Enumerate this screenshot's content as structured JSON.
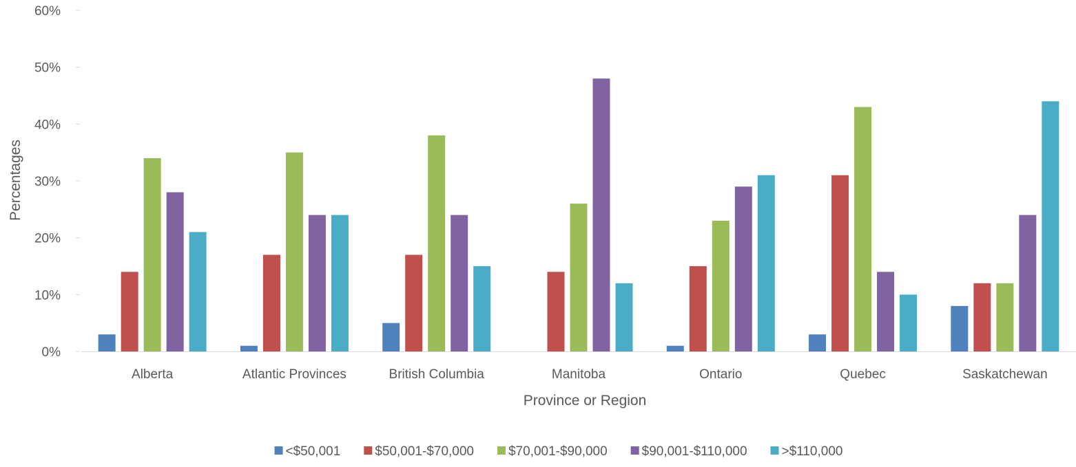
{
  "chart_data": {
    "type": "bar",
    "title": "",
    "xlabel": "Province or Region",
    "ylabel": "Percentages",
    "ylim": [
      0,
      60
    ],
    "yticks": [
      "0%",
      "10%",
      "20%",
      "30%",
      "40%",
      "50%",
      "60%"
    ],
    "categories": [
      "Alberta",
      "Atlantic Provinces",
      "British Columbia",
      "Manitoba",
      "Ontario",
      "Quebec",
      "Saskatchewan"
    ],
    "series": [
      {
        "name": "<$50,001",
        "color": "#4F81BD",
        "values": [
          3,
          1,
          5,
          0,
          1,
          3,
          8
        ]
      },
      {
        "name": "$50,001-$70,000",
        "color": "#C0504D",
        "values": [
          14,
          17,
          17,
          14,
          15,
          31,
          12
        ]
      },
      {
        "name": "$70,001-$90,000",
        "color": "#9BBB59",
        "values": [
          34,
          35,
          38,
          26,
          23,
          43,
          12
        ]
      },
      {
        "name": "$90,001-$110,000",
        "color": "#8064A2",
        "values": [
          28,
          24,
          24,
          48,
          29,
          14,
          24
        ]
      },
      {
        "name": ">$110,000",
        "color": "#4BACC6",
        "values": [
          21,
          24,
          15,
          12,
          31,
          10,
          44
        ]
      }
    ],
    "grid": false,
    "legend_position": "bottom"
  }
}
